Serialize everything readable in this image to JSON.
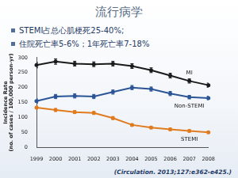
{
  "title": "流行病学",
  "bullets": [
    "STEMI占总心肌梗死25-40%;",
    "住院死亡率5-6%；1年死亡率7-18%"
  ],
  "citation": "(Circulation. 2013;127:e362-e425.)",
  "chart_data": {
    "type": "line",
    "y_label": [
      "Incidence Rate",
      "(no. of cases / 100,000 person-yr)"
    ],
    "categories": [
      "1999",
      "2000",
      "2001",
      "2002",
      "2003",
      "2004",
      "2005",
      "2006",
      "2007",
      "2008"
    ],
    "series": [
      {
        "name": "MI",
        "color": "#1a1a1a",
        "marker": "circle",
        "values": [
          275,
          287,
          280,
          278,
          280,
          272,
          258,
          240,
          222,
          208
        ],
        "errors": [
          9,
          9,
          8,
          8,
          8,
          8,
          8,
          8,
          7,
          7
        ]
      },
      {
        "name": "Non-STEMI",
        "color": "#2b5597",
        "marker": "circle",
        "values": [
          155,
          170,
          172,
          170,
          185,
          200,
          195,
          180,
          168,
          165
        ],
        "errors": [
          7,
          7,
          7,
          7,
          7,
          7,
          7,
          7,
          6,
          6
        ]
      },
      {
        "name": "STEMI",
        "color": "#e07b1f",
        "marker": "circle",
        "values": [
          133,
          125,
          118,
          115,
          98,
          75,
          66,
          60,
          55,
          50
        ],
        "errors": [
          5,
          5,
          5,
          5,
          5,
          4,
          4,
          4,
          4,
          4
        ]
      }
    ],
    "ylim": [
      0,
      300
    ],
    "yticks": [
      0,
      50,
      100,
      150,
      200,
      250,
      300
    ],
    "grid": false
  }
}
